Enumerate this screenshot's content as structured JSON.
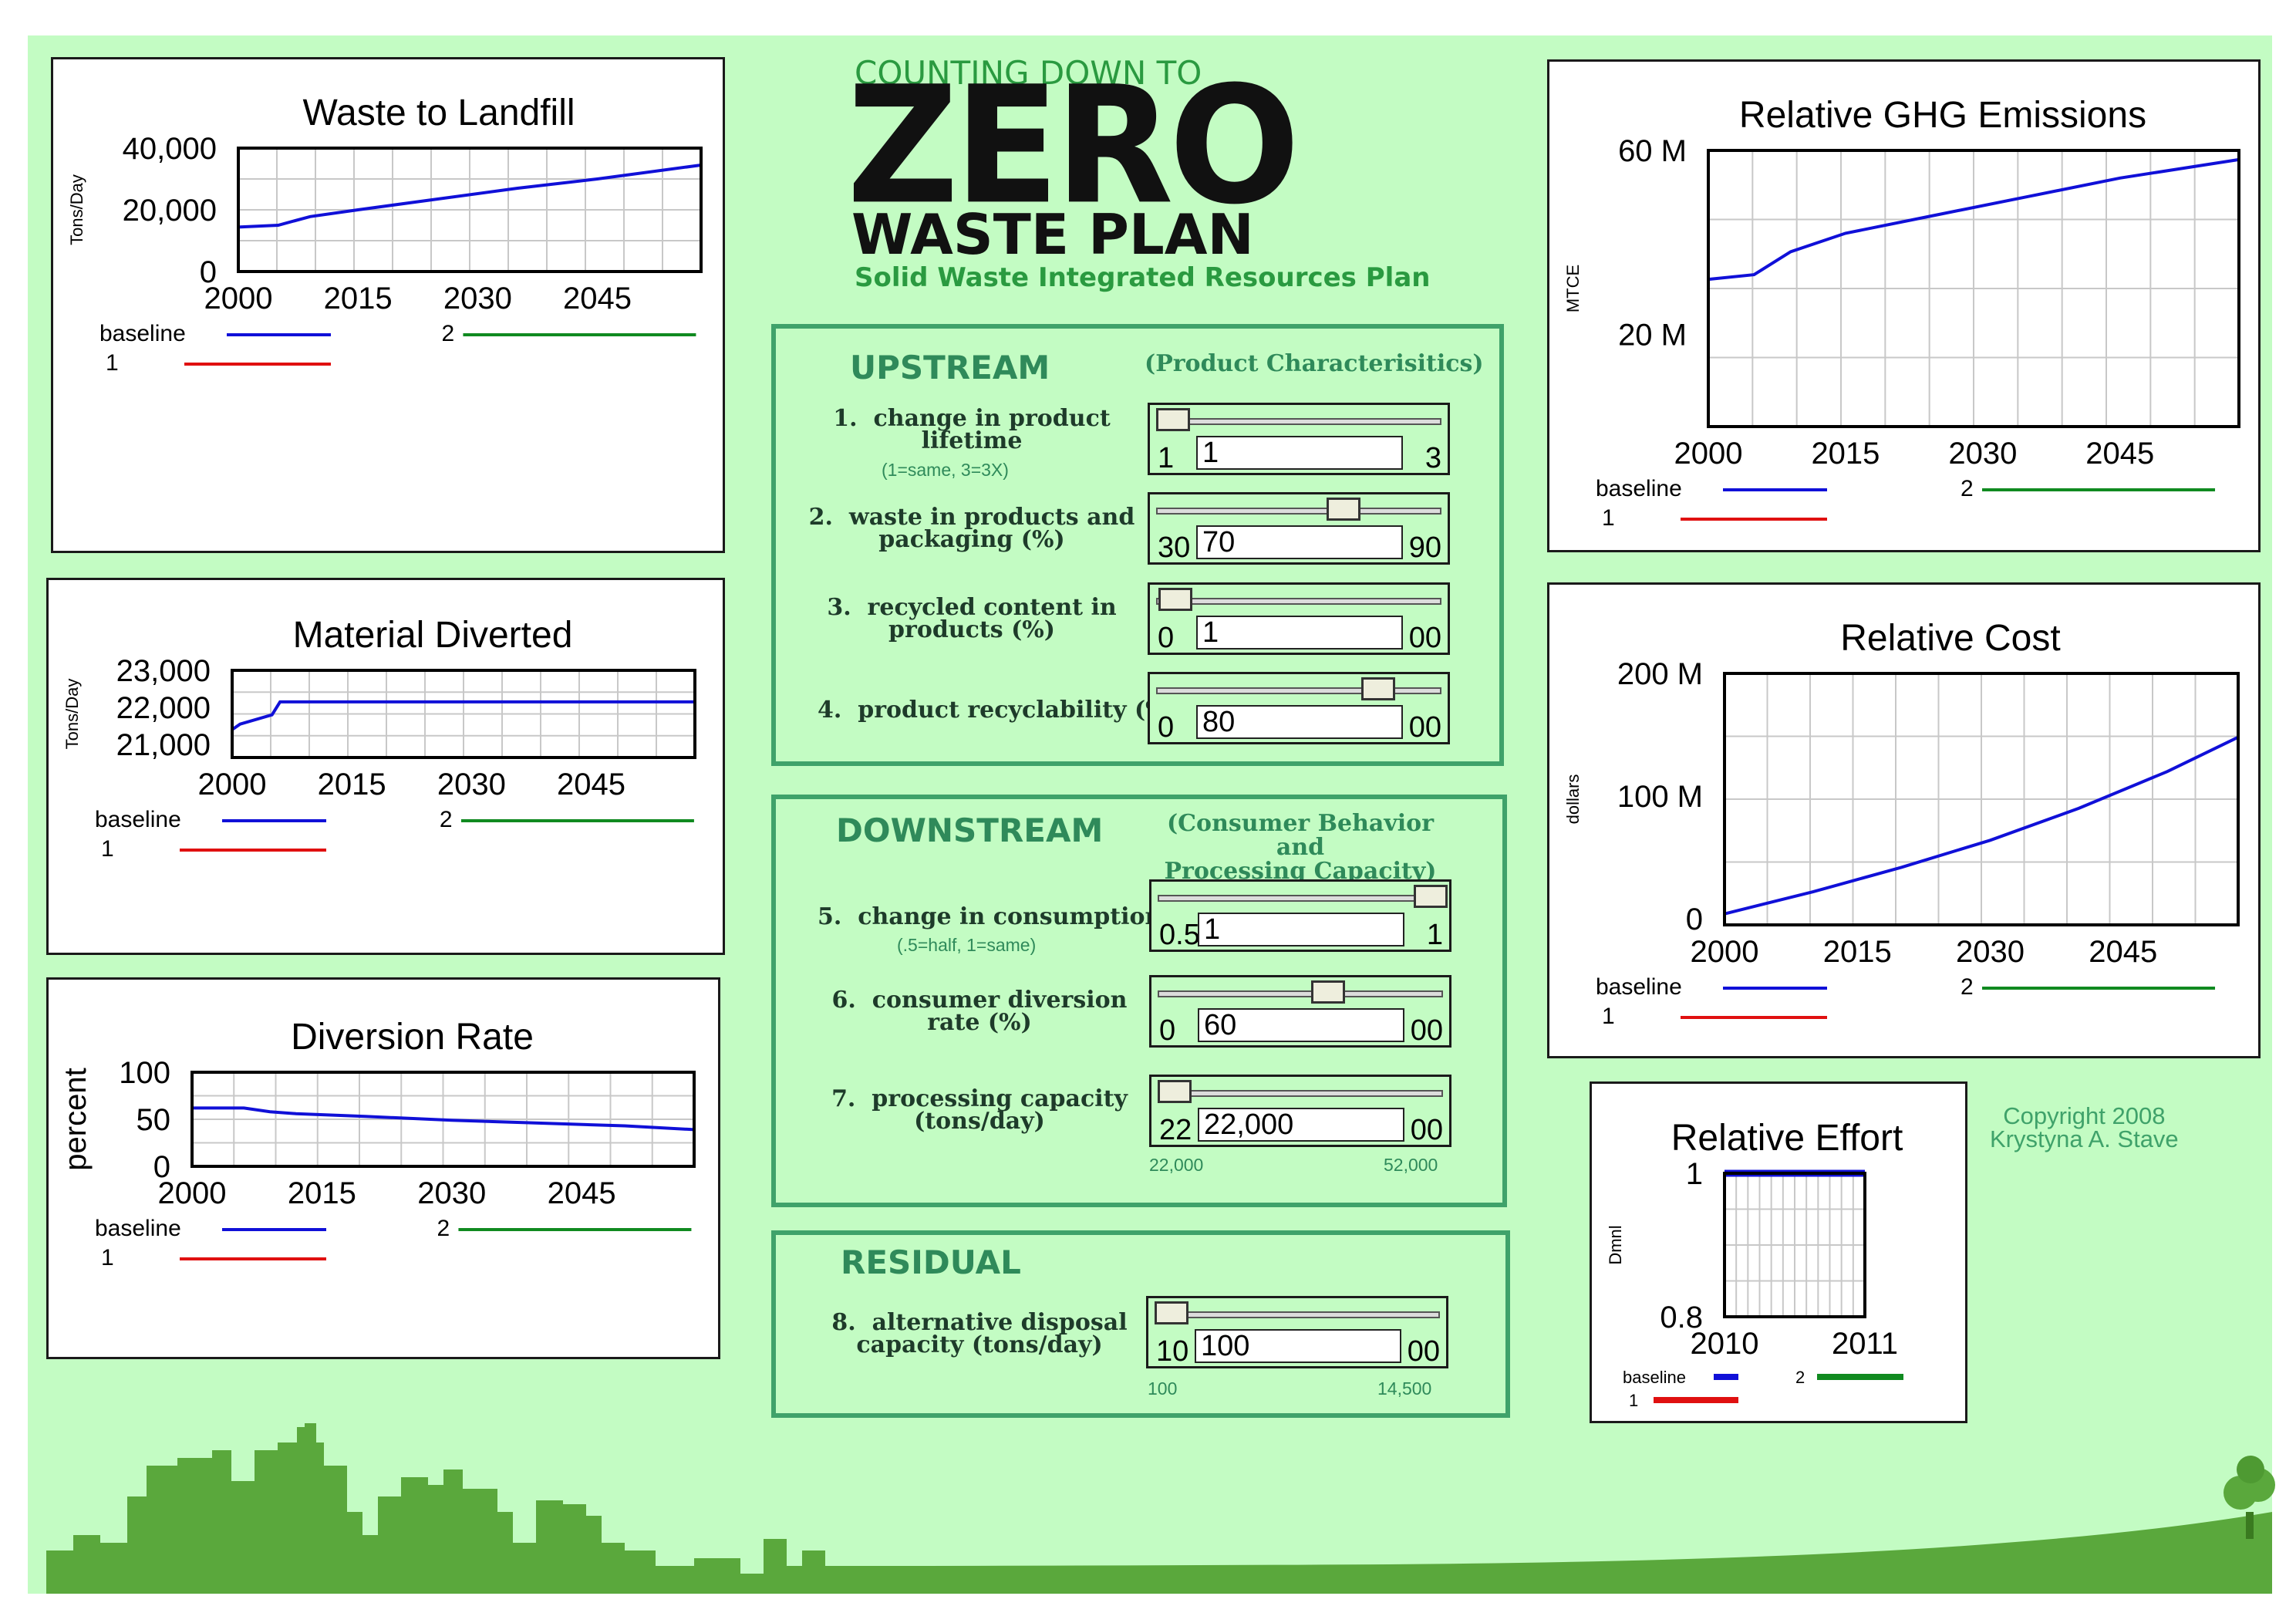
{
  "header": {
    "line1": "COUNTING DOWN TO",
    "zero": "ZERO",
    "line3": "WASTE PLAN",
    "subtitle": "Solid Waste Integrated Resources Plan"
  },
  "copyright": {
    "line1": "Copyright 2008",
    "line2": "Krystyna A. Stave"
  },
  "colors": {
    "baseline": "#1010d8",
    "run1": "#e01010",
    "run2": "#108a20",
    "background": "#c3fcc3",
    "group_border": "#3fa26a"
  },
  "upstream": {
    "title": "UPSTREAM",
    "subtitle": "(Product Characterisitics)",
    "controls": [
      {
        "number": "1.",
        "label_lines": [
          "change in product",
          "lifetime"
        ],
        "note": "(1=same, 3=3X)",
        "min_label": "1",
        "max_label": "3",
        "value": "1",
        "fraction": 0.0
      },
      {
        "number": "2.",
        "label_lines": [
          "waste in products and",
          "packaging (%)"
        ],
        "min_label": "30",
        "max_label": "90",
        "value": "70",
        "fraction": 0.667
      },
      {
        "number": "3.",
        "label_lines": [
          "recycled content in",
          "products (%)"
        ],
        "min_label": "0",
        "max_label": "00",
        "value": "1",
        "fraction": 0.01
      },
      {
        "number": "4.",
        "label_lines": [
          "product recyclability (%)"
        ],
        "min_label": "0",
        "max_label": "00",
        "value": "80",
        "fraction": 0.8
      }
    ]
  },
  "downstream": {
    "title": "DOWNSTREAM",
    "subtitle_lines": [
      "(Consumer Behavior and",
      "Processing Capacity)"
    ],
    "controls": [
      {
        "number": "5.",
        "label_lines": [
          "change in consumption"
        ],
        "note": "(.5=half, 1=same)",
        "min_label": "0.5",
        "max_label": "1",
        "value": "1",
        "fraction": 1.0
      },
      {
        "number": "6.",
        "label_lines": [
          "consumer diversion",
          "rate (%)"
        ],
        "min_label": "0",
        "max_label": "00",
        "value": "60",
        "fraction": 0.6
      },
      {
        "number": "7.",
        "label_lines": [
          "processing capacity",
          "(tons/day)"
        ],
        "min_label": "22",
        "max_label": "00",
        "value": "22,000",
        "fraction": 0.0,
        "range_min": "22,000",
        "range_max": "52,000"
      }
    ]
  },
  "residual": {
    "title": "RESIDUAL",
    "controls": [
      {
        "number": "8.",
        "label_lines": [
          "alternative disposal",
          "capacity (tons/day)"
        ],
        "min_label": "10",
        "max_label": "00",
        "value": "100",
        "fraction": 0.0,
        "range_min": "100",
        "range_max": "14,500"
      }
    ]
  },
  "legend": {
    "baseline": "baseline",
    "run1": "1",
    "run2": "2"
  },
  "chart_data": [
    {
      "type": "line",
      "title": "Waste to Landfill",
      "ylabel": "Tons/Day",
      "xlim": [
        2000,
        2058
      ],
      "ylim": [
        0,
        40000
      ],
      "yticks": [
        0,
        20000,
        40000
      ],
      "ytick_labels": [
        "0",
        "20,000",
        "40,000"
      ],
      "xticks": [
        2000,
        2015,
        2030,
        2045
      ],
      "xtick_labels": [
        "2000",
        "2015",
        "2030",
        "2045"
      ],
      "series": [
        {
          "name": "baseline",
          "x": [
            2000,
            2005,
            2009,
            2015,
            2025,
            2035,
            2045,
            2058
          ],
          "y": [
            14400,
            15000,
            17800,
            20000,
            23500,
            27000,
            30000,
            34500
          ]
        }
      ]
    },
    {
      "type": "line",
      "title": "Material Diverted",
      "ylabel": "Tons/Day",
      "xlim": [
        2000,
        2058
      ],
      "ylim": [
        20650,
        23000
      ],
      "yticks": [
        21000,
        22000,
        23000
      ],
      "ytick_labels": [
        "21,000",
        "22,000",
        "23,000"
      ],
      "xticks": [
        2000,
        2015,
        2030,
        2045
      ],
      "xtick_labels": [
        "2000",
        "2015",
        "2030",
        "2045"
      ],
      "series": [
        {
          "name": "baseline",
          "x": [
            2000,
            2001,
            2005,
            2006,
            2058
          ],
          "y": [
            21400,
            21550,
            21800,
            22150,
            22150
          ]
        }
      ]
    },
    {
      "type": "line",
      "title": "Diversion Rate",
      "ylabel": "percent",
      "xlim": [
        2000,
        2058
      ],
      "ylim": [
        0,
        100
      ],
      "yticks": [
        0,
        50,
        100
      ],
      "ytick_labels": [
        "0",
        "50",
        "100"
      ],
      "xticks": [
        2000,
        2015,
        2030,
        2045
      ],
      "xtick_labels": [
        "2000",
        "2015",
        "2030",
        "2045"
      ],
      "series": [
        {
          "name": "baseline",
          "x": [
            2000,
            2006,
            2009,
            2012,
            2020,
            2030,
            2040,
            2050,
            2058
          ],
          "y": [
            62,
            62,
            58,
            56,
            53,
            49,
            46,
            43,
            39
          ]
        }
      ]
    },
    {
      "type": "line",
      "title": "Relative GHG Emissions",
      "ylabel": "MTCE",
      "xlim": [
        2000,
        2058
      ],
      "ylim": [
        0,
        60
      ],
      "yticks": [
        20,
        60
      ],
      "ytick_labels": [
        "20 M",
        "60 M"
      ],
      "xticks": [
        2000,
        2015,
        2030,
        2045
      ],
      "xtick_labels": [
        "2000",
        "2015",
        "2030",
        "2045"
      ],
      "series": [
        {
          "name": "baseline",
          "x": [
            2000,
            2005,
            2009,
            2015,
            2025,
            2035,
            2045,
            2058
          ],
          "y": [
            32,
            33,
            38,
            42,
            46,
            50,
            54,
            58
          ]
        }
      ]
    },
    {
      "type": "line",
      "title": "Relative Cost",
      "ylabel": "dollars",
      "xlim": [
        2000,
        2058
      ],
      "ylim": [
        -5,
        200
      ],
      "yticks": [
        0,
        100,
        200
      ],
      "ytick_labels": [
        "0",
        "100 M",
        "200 M"
      ],
      "xticks": [
        2000,
        2015,
        2030,
        2045
      ],
      "xtick_labels": [
        "2000",
        "2015",
        "2030",
        "2045"
      ],
      "series": [
        {
          "name": "baseline",
          "x": [
            2000,
            2010,
            2020,
            2030,
            2040,
            2050,
            2058
          ],
          "y": [
            4,
            22,
            42,
            64,
            90,
            120,
            148
          ]
        }
      ]
    },
    {
      "type": "line",
      "title": "Relative Effort",
      "ylabel": "Dmnl",
      "xlim": [
        2010,
        2011
      ],
      "ylim": [
        0.8,
        1.0
      ],
      "yticks": [
        0.8,
        1
      ],
      "ytick_labels": [
        "0.8",
        "1"
      ],
      "xticks": [
        2010,
        2011
      ],
      "xtick_labels": [
        "2010",
        "2011"
      ],
      "series": [
        {
          "name": "baseline",
          "x": [
            2010,
            2011
          ],
          "y": [
            1.0,
            1.0
          ]
        }
      ]
    }
  ]
}
